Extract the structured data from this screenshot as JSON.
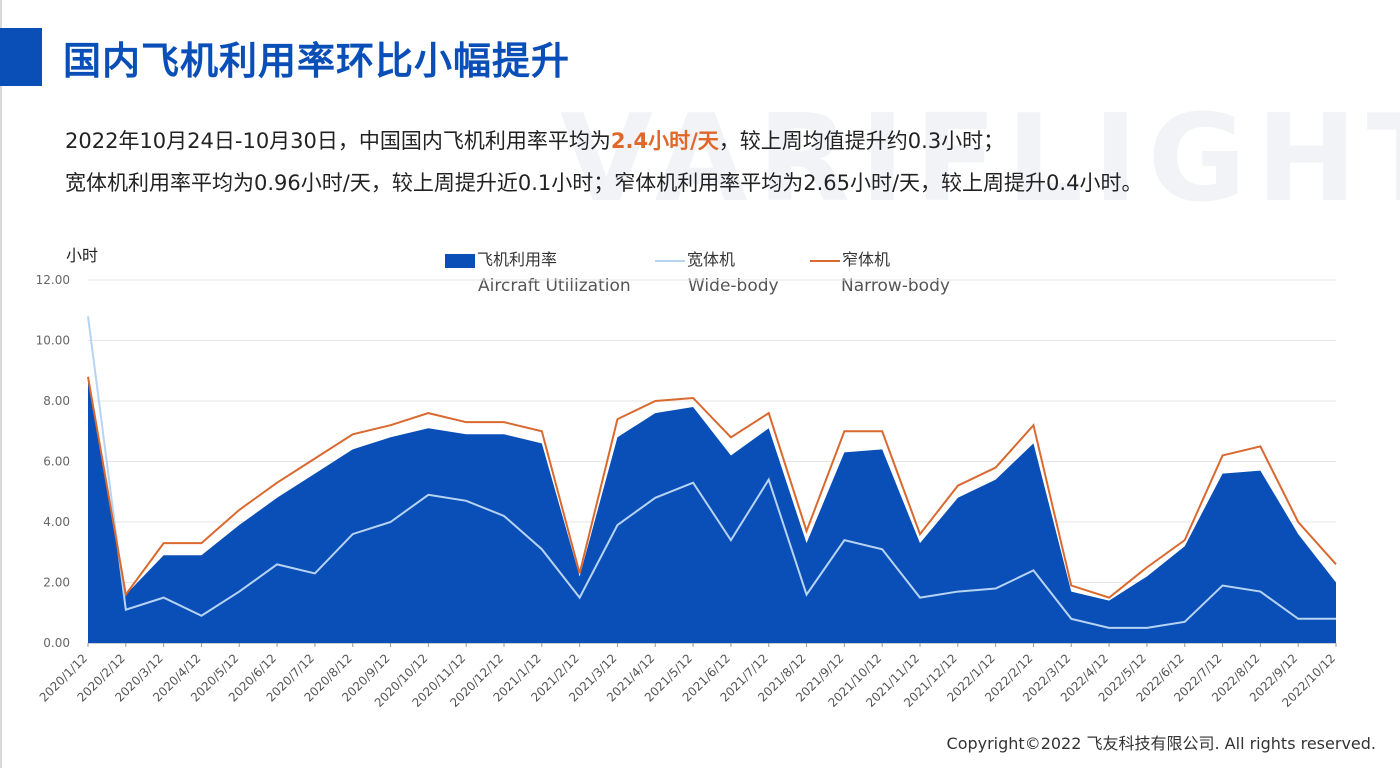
{
  "slide": {
    "title": "国内飞机利用率环比小幅提升",
    "watermark": "VARIFLIGHT",
    "summary_line1_a": "2022年10月24日-10月30日，中国国内飞机利用率平均为",
    "summary_line1_hl": "2.4小时/天",
    "summary_line1_b": "，较上周均值提升约0.3小时；",
    "summary_line2": "宽体机利用率平均为0.96小时/天，较上周提升近0.1小时；窄体机利用率平均为2.65小时/天，较上周提升0.4小时。",
    "copyright": "Copyright©2022 飞友科技有限公司. All rights reserved."
  },
  "colors": {
    "accent": "#0a4fb8",
    "highlight": "#e0662a",
    "widebody": "#b7d3f2",
    "narrowbody": "#d9692f"
  },
  "chart_data": {
    "type": "area",
    "ylabel": "小时",
    "ylim": [
      0,
      12
    ],
    "yticks": [
      "0.00",
      "2.00",
      "4.00",
      "6.00",
      "8.00",
      "10.00",
      "12.00"
    ],
    "grid": true,
    "legend_position": "top",
    "legend": [
      {
        "cn": "飞机利用率",
        "en": "Aircraft Utilization",
        "style": "area"
      },
      {
        "cn": "宽体机",
        "en": "Wide-body",
        "style": "line"
      },
      {
        "cn": "窄体机",
        "en": "Narrow-body",
        "style": "line"
      }
    ],
    "categories": [
      "2020/1/12",
      "2020/2/12",
      "2020/3/12",
      "2020/4/12",
      "2020/5/12",
      "2020/6/12",
      "2020/7/12",
      "2020/8/12",
      "2020/9/12",
      "2020/10/12",
      "2020/11/12",
      "2020/12/12",
      "2021/1/12",
      "2021/2/12",
      "2021/3/12",
      "2021/4/12",
      "2021/5/12",
      "2021/6/12",
      "2021/7/12",
      "2021/8/12",
      "2021/9/12",
      "2021/10/12",
      "2021/11/12",
      "2021/12/12",
      "2022/1/12",
      "2022/2/12",
      "2022/3/12",
      "2022/4/12",
      "2022/5/12",
      "2022/6/12",
      "2022/7/12",
      "2022/8/12",
      "2022/9/12",
      "2022/10/12"
    ],
    "series": [
      {
        "name": "飞机利用率",
        "values": [
          8.8,
          1.6,
          2.9,
          2.9,
          3.9,
          4.8,
          5.6,
          6.4,
          6.8,
          7.1,
          6.9,
          6.9,
          6.6,
          2.2,
          6.8,
          7.6,
          7.8,
          6.2,
          7.1,
          3.3,
          6.3,
          6.4,
          3.3,
          4.8,
          5.4,
          6.6,
          1.7,
          1.4,
          2.2,
          3.2,
          5.6,
          5.7,
          3.6,
          2.0
        ]
      },
      {
        "name": "宽体机",
        "values": [
          10.8,
          1.1,
          1.5,
          0.9,
          1.7,
          2.6,
          2.3,
          3.6,
          4.0,
          4.9,
          4.7,
          4.2,
          3.1,
          1.5,
          3.9,
          4.8,
          5.3,
          3.4,
          5.4,
          1.6,
          3.4,
          3.1,
          1.5,
          1.7,
          1.8,
          2.4,
          0.8,
          0.5,
          0.5,
          0.7,
          1.9,
          1.7,
          0.8,
          0.8
        ]
      },
      {
        "name": "窄体机",
        "values": [
          8.8,
          1.6,
          3.3,
          3.3,
          4.4,
          5.3,
          6.1,
          6.9,
          7.2,
          7.6,
          7.3,
          7.3,
          7.0,
          2.3,
          7.4,
          8.0,
          8.1,
          6.8,
          7.6,
          3.7,
          7.0,
          7.0,
          3.6,
          5.2,
          5.8,
          7.2,
          1.9,
          1.5,
          2.5,
          3.4,
          6.2,
          6.5,
          4.0,
          2.6
        ]
      }
    ]
  }
}
